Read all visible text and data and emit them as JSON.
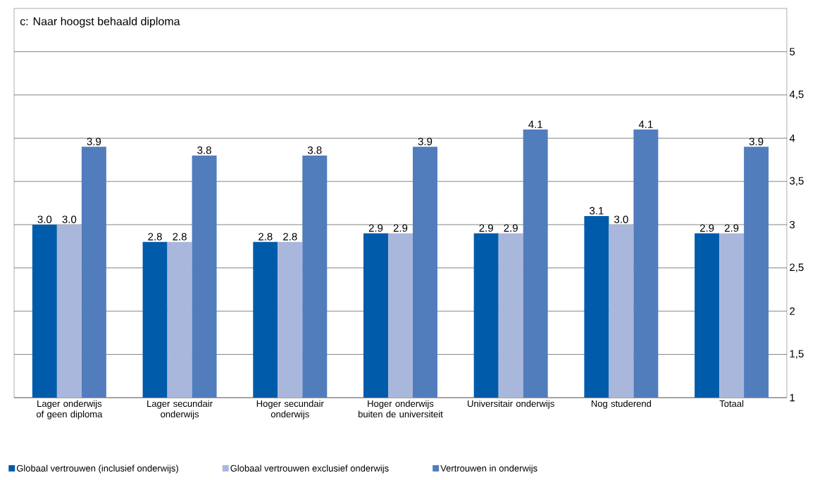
{
  "chart_data": {
    "type": "bar",
    "title": "c: Naar hoogst behaald diploma",
    "categories": [
      "Lager onderwijs of geen diploma",
      "Lager secundair onderwijs",
      "Hoger secundair onderwijs",
      "Hoger onderwijs buiten de universiteit",
      "Universitair onderwijs",
      "Nog studerend",
      "Totaal"
    ],
    "series": [
      {
        "name": "Globaal vertrouwen (inclusief onderwijs)",
        "color": "#005bab",
        "values": [
          3.0,
          2.8,
          2.8,
          2.9,
          2.9,
          3.1,
          2.9
        ],
        "value_labels": [
          "3.0",
          "2.8",
          "2.8",
          "2.9",
          "2.9",
          "3.1",
          "2.9"
        ]
      },
      {
        "name": "Globaal vertrouwen exclusief onderwijs",
        "color": "#aab7dc",
        "values": [
          3.0,
          2.8,
          2.8,
          2.9,
          2.9,
          3.0,
          2.9
        ],
        "value_labels": [
          "3.0",
          "2.8",
          "2.8",
          "2.9",
          "2.9",
          "3.0",
          "2.9"
        ]
      },
      {
        "name": "Vertrouwen in onderwijs",
        "color": "#527dbd",
        "values": [
          3.9,
          3.8,
          3.8,
          3.9,
          4.1,
          4.1,
          3.9
        ],
        "value_labels": [
          "3.9",
          "3.8",
          "3.8",
          "3.9",
          "4.1",
          "4.1",
          "3.9"
        ]
      }
    ],
    "ylim": [
      1,
      5.5
    ],
    "yticks": [
      1,
      {
        "value": 1.5,
        "label": "1,5"
      },
      2,
      {
        "value": 2.5,
        "label": "2,5"
      },
      3,
      {
        "value": 3.5,
        "label": "3,5"
      },
      4,
      {
        "value": 4.5,
        "label": "4,5"
      },
      5
    ],
    "grid": "y",
    "legend": "bottom"
  }
}
